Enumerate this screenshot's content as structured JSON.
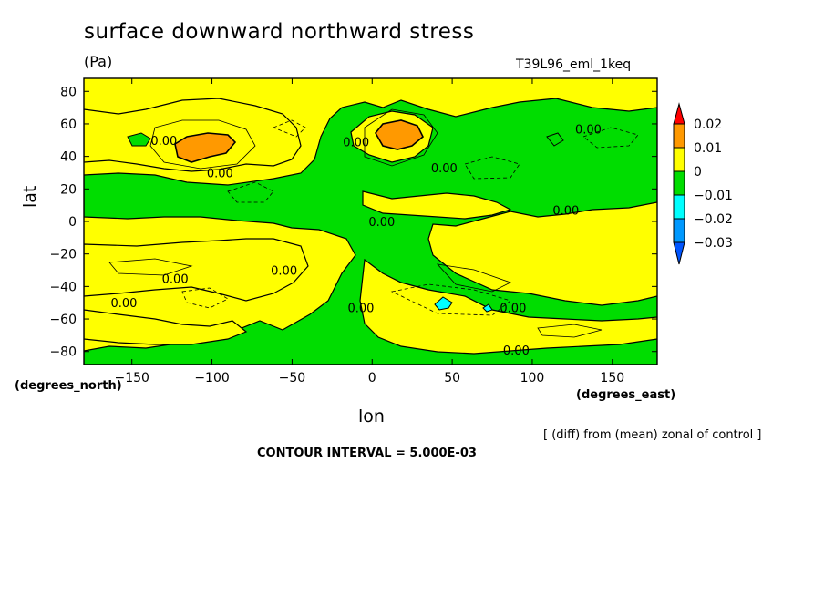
{
  "chart_data": {
    "type": "heatmap",
    "title": "surface downward northward stress",
    "units": "(Pa)",
    "experiment": "T39L96_eml_1keq",
    "xlabel": "lon",
    "ylabel": "lat",
    "x_units_label": "(degrees_east)",
    "y_units_label": "(degrees_north)",
    "xlim": [
      -180,
      178
    ],
    "ylim": [
      -88,
      88
    ],
    "x_ticks": [
      -150,
      -100,
      -50,
      0,
      50,
      100,
      150
    ],
    "y_ticks": [
      -80,
      -60,
      -40,
      -20,
      0,
      20,
      40,
      60,
      80
    ],
    "x_tick_labels": [
      "−150",
      "−100",
      "−50",
      "0",
      "50",
      "100",
      "150"
    ],
    "y_tick_labels": [
      "−80",
      "−60",
      "−40",
      "−20",
      "0",
      "20",
      "40",
      "60",
      "80"
    ],
    "colorbar": {
      "levels": [
        0.02,
        0.01,
        0,
        -0.01,
        -0.02,
        -0.03
      ],
      "labels": [
        "0.02",
        "0.01",
        "0",
        "−0.01",
        "−0.02",
        "−0.03"
      ],
      "colors": [
        "#ff0000",
        "#ff9900",
        "#ffff00",
        "#00dd00",
        "#00ffff",
        "#0099ff",
        "#0055ff"
      ]
    },
    "contour_labels": [
      {
        "text": "0.00",
        "lon": -130,
        "lat": 50
      },
      {
        "text": "0.00",
        "lon": -95,
        "lat": 30
      },
      {
        "text": "0.00",
        "lon": -10,
        "lat": 49
      },
      {
        "text": "0.00",
        "lon": 45,
        "lat": 33
      },
      {
        "text": "0.00",
        "lon": 135,
        "lat": 57
      },
      {
        "text": "0.00",
        "lon": 6,
        "lat": 0
      },
      {
        "text": "0.00",
        "lon": 121,
        "lat": 7
      },
      {
        "text": "0.00",
        "lon": -123,
        "lat": -35
      },
      {
        "text": "0.00",
        "lon": -55,
        "lat": -30
      },
      {
        "text": "0.00",
        "lon": -155,
        "lat": -50
      },
      {
        "text": "0.00",
        "lon": -7,
        "lat": -53
      },
      {
        "text": "0.00",
        "lon": 88,
        "lat": -53
      },
      {
        "text": "0.00",
        "lon": 90,
        "lat": -79
      }
    ]
  },
  "footer": {
    "note": "[ (diff) from (mean) zonal of control ]",
    "contour_interval": "CONTOUR INTERVAL = 5.000E-03"
  }
}
